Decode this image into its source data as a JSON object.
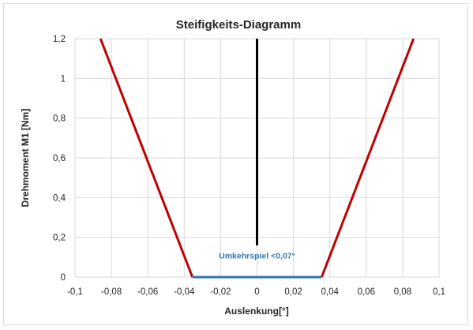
{
  "chart_data": {
    "type": "line",
    "title": "Steifigkeits-Diagramm",
    "xlabel": "Auslenkung[°]",
    "ylabel": "Drehmoment M1 [Nm]",
    "xlim": [
      -0.1,
      0.1
    ],
    "ylim": [
      0,
      1.2
    ],
    "xticks": [
      -0.1,
      -0.08,
      -0.06,
      -0.04,
      -0.02,
      0,
      0.02,
      0.04,
      0.06,
      0.08,
      0.1
    ],
    "xtick_labels": [
      "-0,1",
      "-0,08",
      "-0,06",
      "-0,04",
      "-0,02",
      "0",
      "0,02",
      "0,04",
      "0,06",
      "0,08",
      "0,1"
    ],
    "yticks": [
      0,
      0.2,
      0.4,
      0.6,
      0.8,
      1,
      1.2
    ],
    "ytick_labels": [
      "0",
      "0,2",
      "0,4",
      "0,6",
      "0,8",
      "1",
      "1,2"
    ],
    "grid": true,
    "series": [
      {
        "color": "#c00000",
        "x": [
          -0.0355,
          -0.086
        ],
        "y": [
          0,
          1.2
        ]
      },
      {
        "color": "#c00000",
        "x": [
          0.0355,
          0.086
        ],
        "y": [
          0,
          1.2
        ]
      },
      {
        "color": "#2e75b6",
        "x": [
          -0.0355,
          0.0355
        ],
        "y": [
          0,
          0
        ]
      },
      {
        "color": "#000000",
        "x": [
          0,
          0
        ],
        "y": [
          0.16,
          1.2
        ]
      }
    ],
    "annotations": [
      {
        "text": "Umkehrspiel <0,07°",
        "x": 0,
        "y": 0.11,
        "color": "#2e75b6"
      }
    ]
  }
}
